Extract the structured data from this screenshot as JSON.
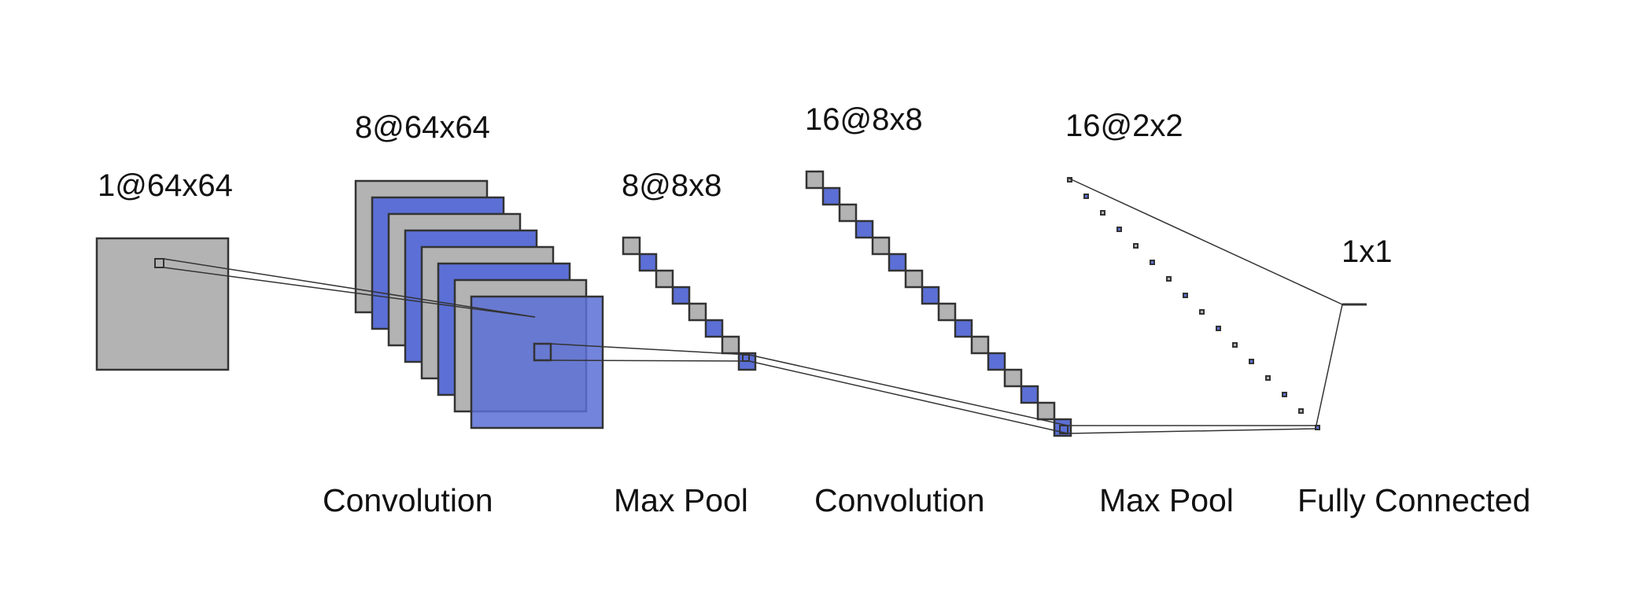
{
  "layers": [
    {
      "label": "1@64x64"
    },
    {
      "label": "8@64x64"
    },
    {
      "label": "8@8x8"
    },
    {
      "label": "16@8x8"
    },
    {
      "label": "16@2x2"
    },
    {
      "label": "1x1"
    }
  ],
  "operations": [
    {
      "label": "Convolution"
    },
    {
      "label": "Max Pool"
    },
    {
      "label": "Convolution"
    },
    {
      "label": "Max Pool"
    },
    {
      "label": "Fully Connected"
    }
  ],
  "colors": {
    "gray_map": "#b3b3b3",
    "blue_map": "#5b6fd6",
    "stroke": "#333333",
    "background": "#ffffff"
  }
}
